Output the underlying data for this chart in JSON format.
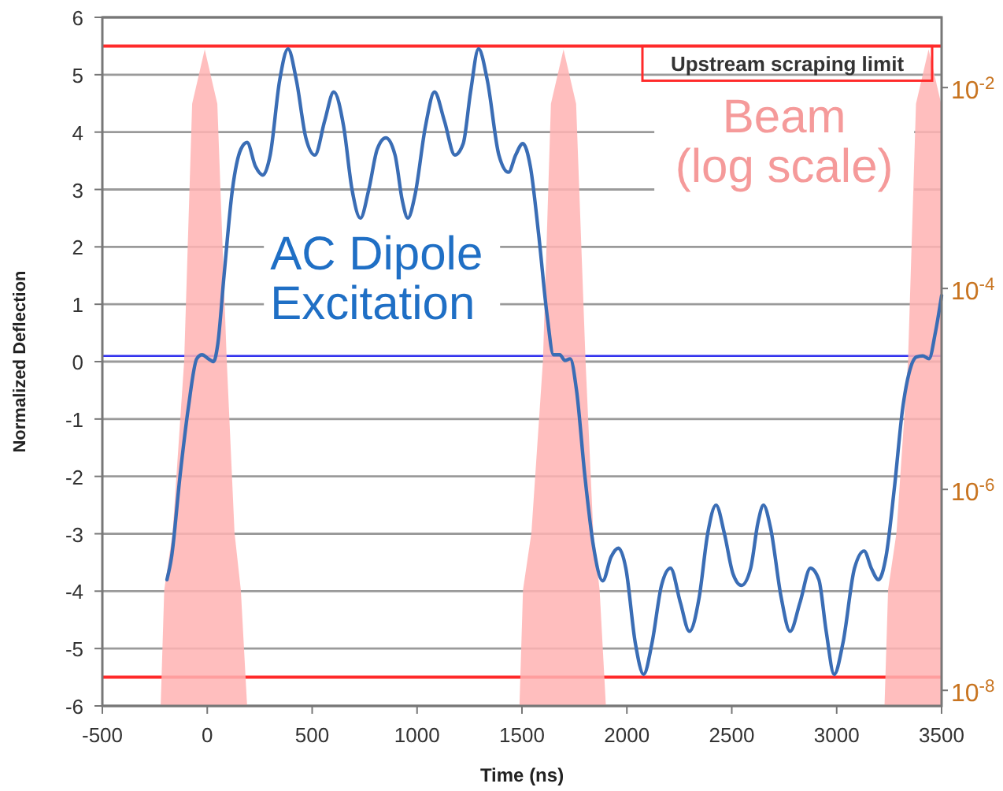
{
  "chart_data": {
    "type": "line",
    "xlabel": "Time (ns)",
    "ylabel": "Normalized Deflection",
    "xlim": [
      -500,
      3500
    ],
    "xticks": [
      -500,
      0,
      500,
      1000,
      1500,
      2000,
      2500,
      3000,
      3500
    ],
    "ylim": [
      -6,
      6
    ],
    "yticks": [
      -6,
      -5,
      -4,
      -3,
      -2,
      -1,
      0,
      1,
      2,
      3,
      4,
      5,
      6
    ],
    "y2lim": [
      7e-09,
      0.05
    ],
    "y2ticks": [
      {
        "value": 0.01,
        "label": "10$^{-2}$"
      },
      {
        "value": 0.0001,
        "label": "10$^{-4}$"
      },
      {
        "value": 1e-06,
        "label": "10$^{-6}$"
      },
      {
        "value": 1e-08,
        "label": "10$^{-8}$"
      }
    ],
    "log": "y2",
    "grid": "y",
    "series": [
      {
        "name": "Beam\n(log scale)",
        "type": "area",
        "axis": "y2",
        "color": "#ffb3b3",
        "x": [
          -222,
          -205,
          -165,
          -110,
          -72,
          -12,
          48,
          93,
          130,
          160,
          190,
          1488,
          1505,
          1545,
          1600,
          1638,
          1698,
          1758,
          1803,
          1840,
          1870,
          1900,
          3228,
          3245,
          3285,
          3340,
          3378,
          3438,
          3498
        ],
        "values": [
          7e-09,
          1e-07,
          3.7e-07,
          1.9e-05,
          0.0069,
          0.024,
          0.0069,
          1.9e-05,
          3.7e-07,
          1e-07,
          7e-09,
          7e-09,
          1e-07,
          3.7e-07,
          1.9e-05,
          0.0069,
          0.024,
          0.0069,
          1.9e-05,
          3.7e-07,
          1e-07,
          7e-09,
          7e-09,
          1e-07,
          3.7e-07,
          1.9e-05,
          0.0069,
          0.024,
          0.0069
        ]
      },
      {
        "name": "AC Dipole\nExcitation",
        "color": "#3a6db5",
        "x": [
          -192,
          -170,
          -130,
          -90,
          -50,
          -25,
          5,
          30,
          50,
          80,
          120,
          160,
          190,
          230,
          265,
          300,
          345,
          385,
          425,
          470,
          513,
          560,
          603,
          650,
          690,
          730,
          770,
          810,
          851,
          895,
          930,
          956,
          990,
          1040,
          1083,
          1130,
          1180,
          1220,
          1255,
          1293,
          1335,
          1390,
          1436,
          1470,
          1504,
          1540,
          1580,
          1620,
          1650,
          1680,
          1705,
          1730,
          1760,
          1800,
          1840,
          1885,
          1925,
          1960,
          1995,
          2040,
          2080,
          2120,
          2165,
          2208,
          2255,
          2298,
          2345,
          2385,
          2425,
          2465,
          2506,
          2546,
          2590,
          2625,
          2651,
          2685,
          2735,
          2778,
          2825,
          2875,
          2915,
          2950,
          2988,
          3030,
          3085,
          3131,
          3165,
          3199,
          3235,
          3275,
          3315,
          3345,
          3380,
          3410,
          3440,
          3470,
          3500
        ],
        "values": [
          -3.8,
          -3.4,
          -2,
          -0.8,
          0.05,
          0.12,
          0.05,
          0,
          0.3,
          1.5,
          3,
          3.7,
          3.82,
          3.4,
          3.25,
          3.6,
          4.9,
          5.45,
          4.9,
          3.9,
          3.6,
          4.2,
          4.7,
          4.1,
          3,
          2.5,
          3,
          3.7,
          3.9,
          3.6,
          2.8,
          2.5,
          2.9,
          4.1,
          4.7,
          4.2,
          3.6,
          3.8,
          4.7,
          5.45,
          4.9,
          3.6,
          3.3,
          3.6,
          3.8,
          3.4,
          2.2,
          0.8,
          0.12,
          0.12,
          0.02,
          0.05,
          -0.5,
          -2,
          -3.2,
          -3.82,
          -3.4,
          -3.25,
          -3.6,
          -4.9,
          -5.45,
          -4.9,
          -3.9,
          -3.6,
          -4.2,
          -4.7,
          -4.1,
          -3,
          -2.5,
          -3,
          -3.7,
          -3.9,
          -3.6,
          -2.8,
          -2.5,
          -2.9,
          -4.1,
          -4.7,
          -4.2,
          -3.6,
          -3.8,
          -4.7,
          -5.45,
          -4.9,
          -3.6,
          -3.3,
          -3.6,
          -3.8,
          -3.4,
          -2.2,
          -0.8,
          -0.2,
          0.08,
          0.1,
          0.05,
          0.5,
          1.15
        ]
      }
    ],
    "ref_lines": [
      {
        "axis": "y",
        "value": 5.5,
        "label": "Upstream scraping limit",
        "color": "#ff2a2a"
      },
      {
        "axis": "y",
        "value": -5.5,
        "color": "#ff2a2a"
      },
      {
        "axis": "y",
        "value": 0.1,
        "color": "#3333ee"
      }
    ]
  }
}
